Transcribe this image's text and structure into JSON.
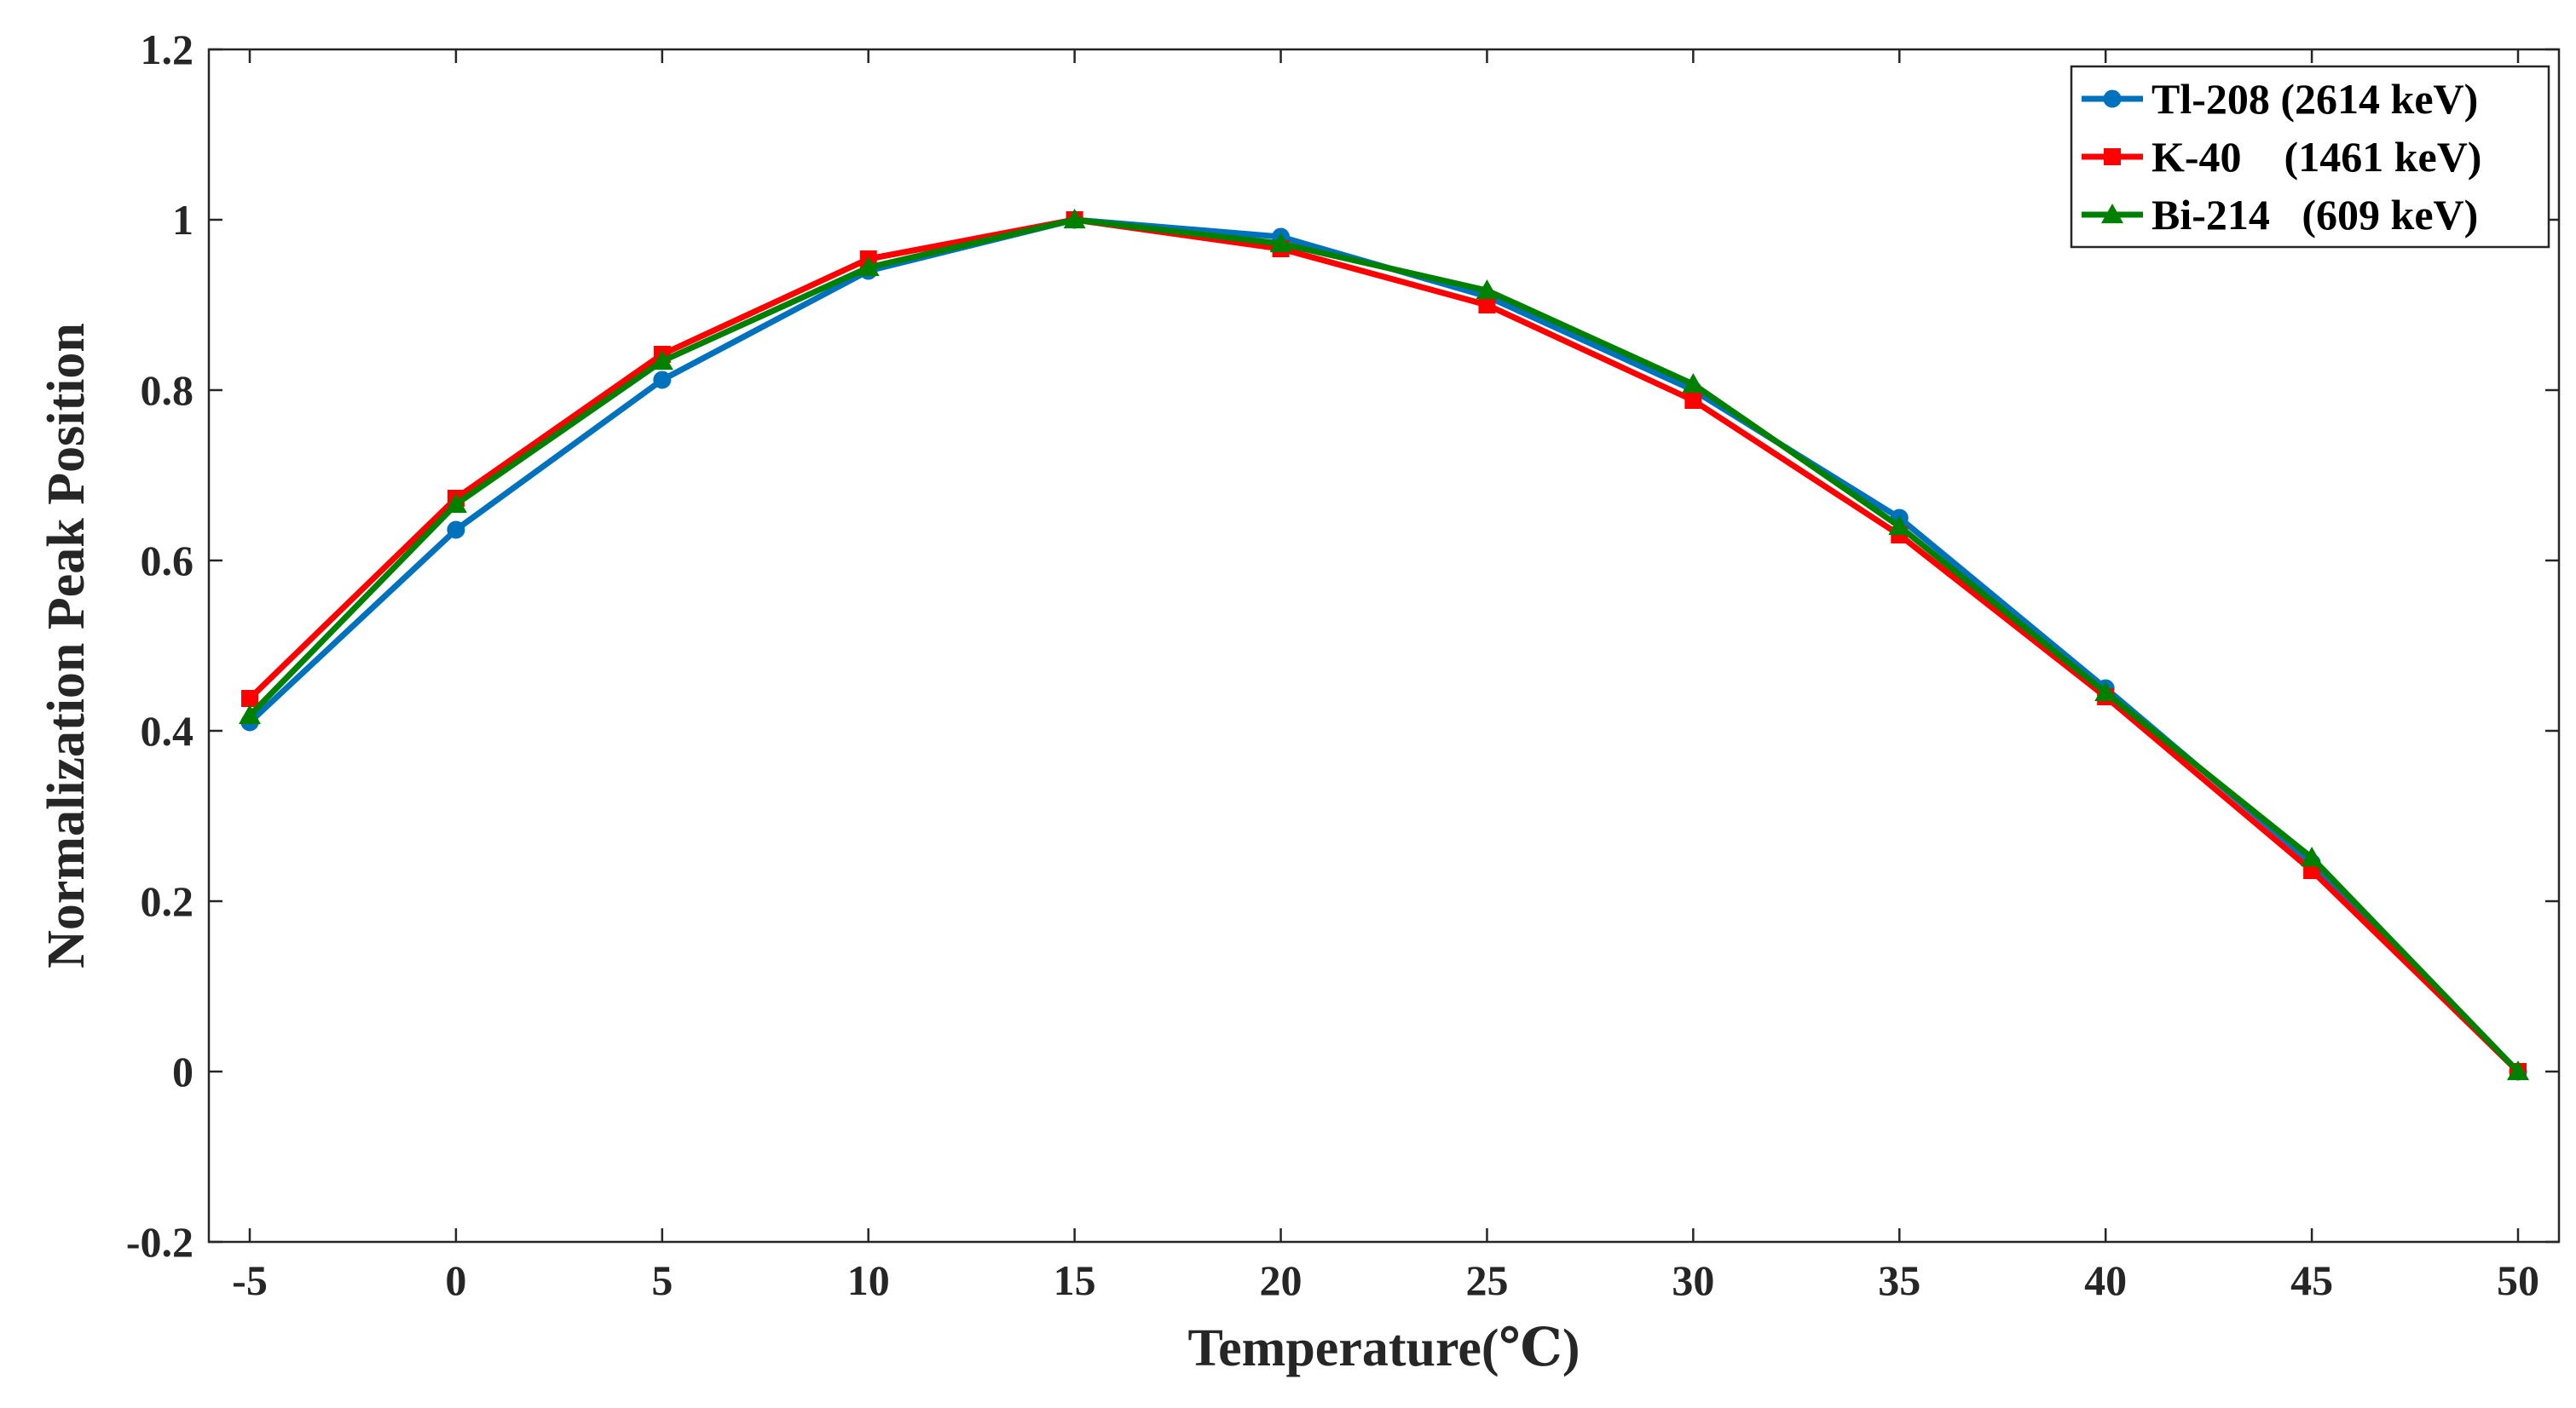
{
  "chart_data": {
    "type": "line",
    "xlabel": "Temperature(℃)",
    "ylabel": "Normalization Peak Position",
    "xlim": [
      -5,
      50
    ],
    "ylim": [
      -0.2,
      1.2
    ],
    "xticks": [
      "-5",
      "0",
      "5",
      "10",
      "15",
      "20",
      "25",
      "30",
      "35",
      "40",
      "45",
      "50"
    ],
    "yticks": [
      "-0.2",
      "0",
      "0.2",
      "0.4",
      "0.6",
      "0.8",
      "1",
      "1.2"
    ],
    "x": [
      -5,
      0,
      5,
      10,
      15,
      20,
      25,
      30,
      35,
      40,
      45,
      50
    ],
    "grid": false,
    "legend_position": "top-right",
    "series": [
      {
        "name": "Tl-208 (2614 keV)",
        "color": "#0072BD",
        "marker": "circle",
        "values": [
          0.41,
          0.636,
          0.812,
          0.94,
          1.0,
          0.98,
          0.91,
          0.8,
          0.65,
          0.45,
          0.245,
          0.0
        ]
      },
      {
        "name": "K-40    (1461 keV)",
        "color": "#FF0000",
        "marker": "square",
        "values": [
          0.438,
          0.673,
          0.842,
          0.954,
          1.0,
          0.966,
          0.9,
          0.788,
          0.63,
          0.44,
          0.236,
          0.0
        ]
      },
      {
        "name": "Bi-214   (609 keV)",
        "color": "#008000",
        "marker": "triangle",
        "values": [
          0.418,
          0.666,
          0.834,
          0.944,
          1.0,
          0.972,
          0.917,
          0.807,
          0.64,
          0.445,
          0.251,
          0.0
        ]
      }
    ]
  }
}
